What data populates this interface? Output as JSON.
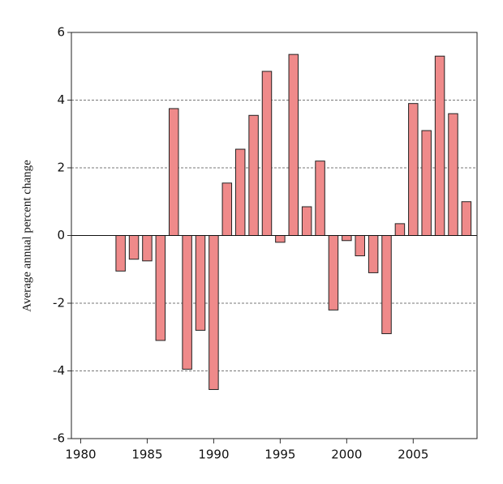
{
  "chart_data": {
    "type": "bar",
    "y_label": "Average annual percent change",
    "x": [
      1983,
      1984,
      1985,
      1986,
      1987,
      1988,
      1989,
      1990,
      1991,
      1992,
      1993,
      1994,
      1995,
      1996,
      1997,
      1998,
      1999,
      2000,
      2001,
      2002,
      2003,
      2004,
      2005,
      2006,
      2007,
      2008,
      2009
    ],
    "values": [
      -1.05,
      -0.7,
      -0.75,
      -3.1,
      3.75,
      -3.95,
      -2.8,
      -4.55,
      1.55,
      2.55,
      3.55,
      4.85,
      -0.2,
      5.35,
      0.85,
      2.2,
      -2.2,
      -0.15,
      -0.6,
      -1.1,
      -2.9,
      0.35,
      3.9,
      3.1,
      5.3,
      3.6,
      1.0
    ],
    "color": "#ef8a8a",
    "xlim": [
      1979.3,
      2009.8
    ],
    "xticks": [
      1980,
      1985,
      1990,
      1995,
      2000,
      2005
    ],
    "ylim": [
      -6,
      6
    ],
    "yticks": [
      -6,
      -4,
      -2,
      0,
      2,
      4,
      6
    ],
    "grid": true
  }
}
